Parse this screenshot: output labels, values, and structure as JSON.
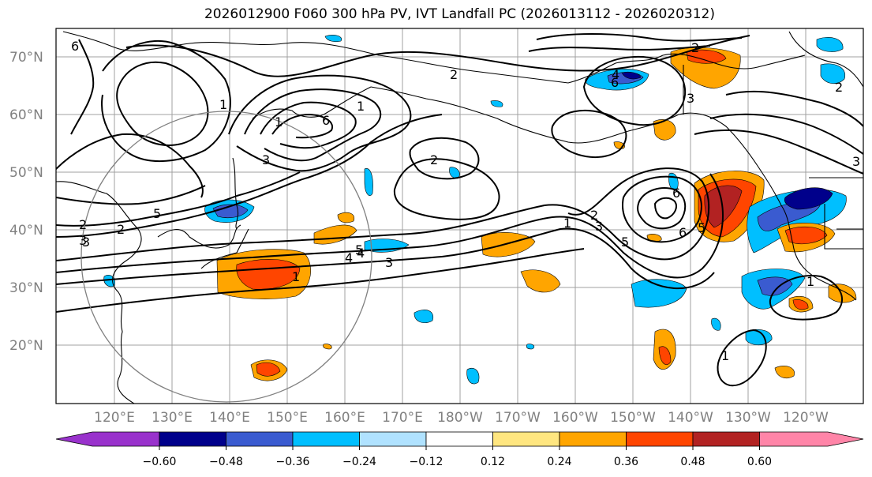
{
  "title": "2026012900 F060 300 hPa PV, IVT Landfall PC (2026013112 - 2026020312)",
  "map": {
    "lat_labels": [
      "70°N",
      "60°N",
      "50°N",
      "40°N",
      "30°N",
      "20°N"
    ],
    "lon_labels": [
      "120°E",
      "130°E",
      "140°E",
      "150°E",
      "160°E",
      "170°E",
      "180°W",
      "170°W",
      "160°W",
      "150°W",
      "140°W",
      "130°W",
      "120°W"
    ]
  },
  "contours": {
    "labels": [
      "6",
      "1",
      "2",
      "2",
      "1",
      "3",
      "6",
      "5",
      "3",
      "2",
      "4",
      "2",
      "1",
      "2",
      "3",
      "1",
      "3",
      "4",
      "5",
      "3",
      "6",
      "6",
      "5",
      "2",
      "6",
      "1",
      "5",
      "1",
      "3",
      "2",
      "4",
      "1",
      "3"
    ]
  },
  "colorbar": {
    "ticks": [
      "−0.60",
      "−0.48",
      "−0.36",
      "−0.24",
      "−0.12",
      "0.12",
      "0.24",
      "0.36",
      "0.48",
      "0.60"
    ],
    "colors": [
      "#9932cc",
      "#00008b",
      "#3a5bd0",
      "#00bfff",
      "#b0e2ff",
      "#ffffff",
      "#ffe680",
      "#ffa500",
      "#ff4500",
      "#b22222",
      "#ff85a8"
    ]
  }
}
